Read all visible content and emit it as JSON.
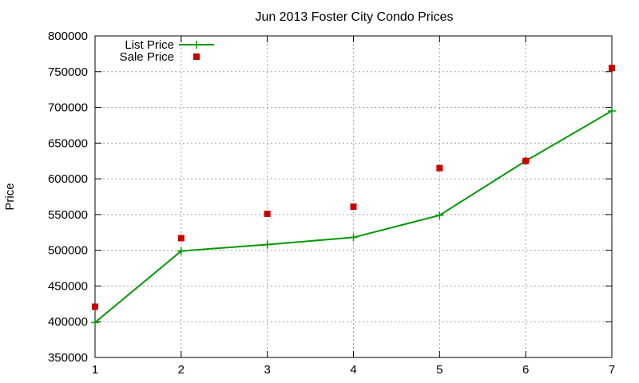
{
  "chart_data": {
    "type": "line",
    "title": "Jun 2013 Foster City Condo Prices",
    "xlabel": "",
    "ylabel": "Price",
    "xlim": [
      1,
      7
    ],
    "ylim": [
      350000,
      800000
    ],
    "x_ticks": [
      1,
      2,
      3,
      4,
      5,
      6,
      7
    ],
    "y_ticks": [
      350000,
      400000,
      450000,
      500000,
      550000,
      600000,
      650000,
      700000,
      750000,
      800000
    ],
    "grid": true,
    "legend_position": "top-left",
    "series": [
      {
        "name": "List Price",
        "style": "line-with-plus-markers",
        "color": "#009900",
        "x": [
          1,
          2,
          3,
          4,
          5,
          6,
          7
        ],
        "values": [
          399000,
          499000,
          508000,
          518000,
          549000,
          625000,
          695000
        ]
      },
      {
        "name": "Sale Price",
        "style": "square-markers",
        "color": "#cc0000",
        "x": [
          1,
          2,
          3,
          4,
          5,
          6,
          7
        ],
        "values": [
          421000,
          517000,
          551000,
          561000,
          615000,
          625000,
          755000
        ]
      }
    ]
  }
}
